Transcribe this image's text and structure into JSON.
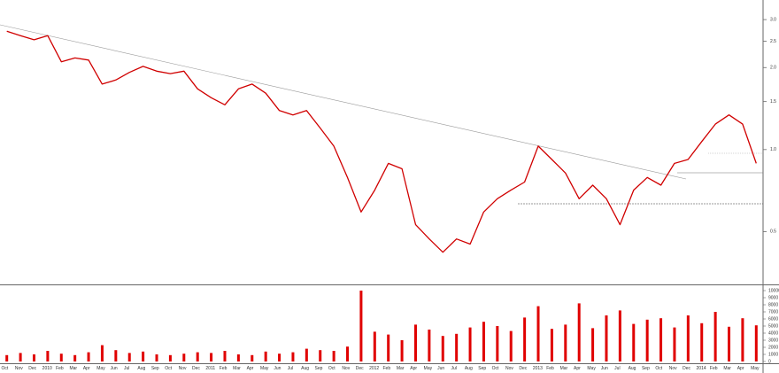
{
  "chart_data": {
    "type": "line",
    "log": true,
    "categories": [
      "Oct",
      "Nov",
      "Dec",
      "2010",
      "Feb",
      "Mar",
      "Apr",
      "May",
      "Jun",
      "Jul",
      "Aug",
      "Sep",
      "Oct",
      "Nov",
      "Dec",
      "2011",
      "Feb",
      "Mar",
      "Apr",
      "May",
      "Jun",
      "Jul",
      "Aug",
      "Sep",
      "Oct",
      "Nov",
      "Dec",
      "2012",
      "Feb",
      "Mar",
      "Apr",
      "May",
      "Jun",
      "Jul",
      "Aug",
      "Sep",
      "Oct",
      "Nov",
      "Dec",
      "2013",
      "Feb",
      "Mar",
      "Apr",
      "May",
      "Jun",
      "Jul",
      "Aug",
      "Sep",
      "Oct",
      "Nov",
      "Dec",
      "2014",
      "Feb",
      "Mar",
      "Apr",
      "May"
    ],
    "series": [
      {
        "color": "#d00000",
        "values": [
          2.72,
          2.62,
          2.53,
          2.62,
          2.1,
          2.17,
          2.13,
          1.74,
          1.8,
          1.92,
          2.02,
          1.94,
          1.9,
          1.94,
          1.67,
          1.55,
          1.46,
          1.67,
          1.74,
          1.61,
          1.39,
          1.34,
          1.39,
          1.2,
          1.03,
          0.79,
          0.59,
          0.71,
          0.89,
          0.85,
          0.53,
          0.47,
          0.42,
          0.47,
          0.45,
          0.59,
          0.66,
          0.71,
          0.76,
          1.03,
          0.92,
          0.82,
          0.66,
          0.74,
          0.66,
          0.53,
          0.71,
          0.79,
          0.74,
          0.89,
          0.92,
          1.07,
          1.24,
          1.34,
          1.24,
          0.89
        ]
      },
      {
        "type": "bar",
        "axis": "y2",
        "color": "#e00000",
        "values": [
          900,
          1200,
          1000,
          1500,
          1100,
          900,
          1300,
          2300,
          1600,
          1200,
          1400,
          1000,
          900,
          1100,
          1300,
          1200,
          1500,
          1000,
          900,
          1400,
          1100,
          1300,
          1800,
          1600,
          1500,
          2100,
          10000,
          4200,
          3800,
          3000,
          5200,
          4500,
          3600,
          3900,
          4800,
          5600,
          5000,
          4300,
          6200,
          7800,
          4600,
          5200,
          8200,
          4700,
          6500,
          7200,
          5300,
          5900,
          6100,
          4800,
          6500,
          5400,
          7000,
          4900,
          6100,
          5100
        ]
      }
    ],
    "ylim": [
      0.32,
      3.54
    ],
    "yticks": [
      {
        "value": 3,
        "label": "3.0"
      },
      2.5,
      {
        "value": 2,
        "label": "2.0"
      },
      1.5,
      {
        "value": 1,
        "label": "1.0"
      },
      0.5
    ],
    "y2lim": [
      0,
      10750
    ],
    "y2ticks": [
      0,
      1000,
      2000,
      3000,
      4000,
      5000,
      6000,
      7000,
      8000,
      9000,
      10000
    ]
  }
}
